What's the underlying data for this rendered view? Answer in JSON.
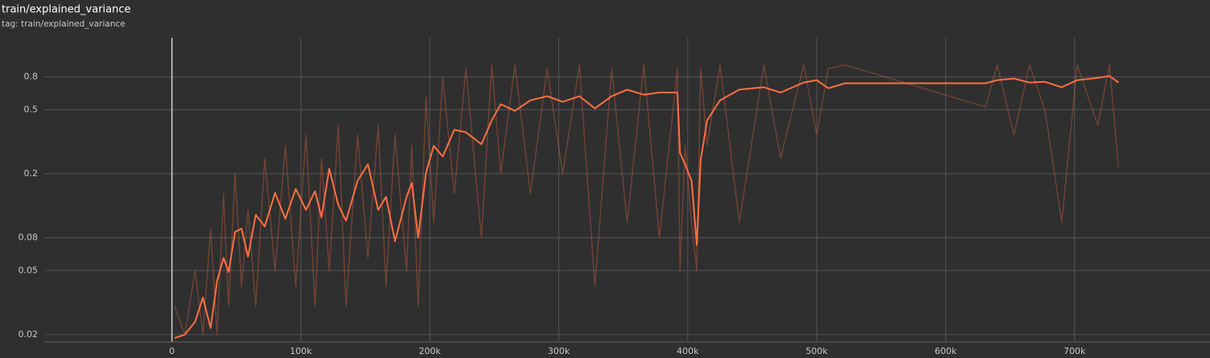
{
  "chart_data": {
    "type": "line",
    "title": "train/explained_variance",
    "subtitle": "tag: train/explained_variance",
    "log_y": true,
    "grid": true,
    "xlim": [
      -99000,
      805000
    ],
    "ylim": [
      0.018,
      1.4
    ],
    "xticks": [
      0,
      {
        "value": 100000,
        "label": "100k"
      },
      {
        "value": 200000,
        "label": "200k"
      },
      {
        "value": 300000,
        "label": "300k"
      },
      {
        "value": 400000,
        "label": "400k"
      },
      {
        "value": 500000,
        "label": "500k"
      },
      {
        "value": 600000,
        "label": "600k"
      },
      {
        "value": 700000,
        "label": "700k"
      }
    ],
    "yticks": [
      0.02,
      0.05,
      0.08,
      0.2,
      0.5,
      0.8
    ],
    "x": [
      2000,
      10000,
      18000,
      24000,
      30000,
      35000,
      40000,
      44000,
      49000,
      54000,
      59000,
      65000,
      72000,
      80000,
      88000,
      96000,
      104000,
      111000,
      116000,
      122000,
      129000,
      135000,
      144000,
      152000,
      160000,
      166000,
      173000,
      182000,
      186000,
      191000,
      197000,
      203000,
      210000,
      219000,
      228000,
      240000,
      248000,
      255000,
      266000,
      278000,
      291000,
      303000,
      316000,
      328000,
      341000,
      353000,
      366000,
      378000,
      392000,
      394000,
      398000,
      403000,
      407000,
      410000,
      415000,
      425000,
      440000,
      459000,
      472000,
      490000,
      500000,
      509000,
      522000,
      631000,
      640000,
      653000,
      665000,
      677000,
      690000,
      702000,
      718000,
      727000,
      734000
    ],
    "series": [
      {
        "color": "#ff7043",
        "opacity": 0.3,
        "width": 1.5,
        "values": [
          0.03,
          0.02,
          0.05,
          0.02,
          0.09,
          0.02,
          0.15,
          0.03,
          0.2,
          0.04,
          0.12,
          0.03,
          0.25,
          0.05,
          0.3,
          0.04,
          0.35,
          0.03,
          0.25,
          0.05,
          0.4,
          0.03,
          0.35,
          0.06,
          0.4,
          0.04,
          0.35,
          0.05,
          0.3,
          0.03,
          0.6,
          0.1,
          0.8,
          0.15,
          0.9,
          0.08,
          0.95,
          0.2,
          0.95,
          0.15,
          0.9,
          0.2,
          0.95,
          0.04,
          0.9,
          0.1,
          0.95,
          0.08,
          0.9,
          0.05,
          0.3,
          0.1,
          0.05,
          0.9,
          0.3,
          0.95,
          0.1,
          0.95,
          0.25,
          0.95,
          0.35,
          0.9,
          0.95,
          0.52,
          0.95,
          0.35,
          0.95,
          0.5,
          0.1,
          0.95,
          0.4,
          0.95,
          0.22
        ]
      },
      {
        "color": "#ff7043",
        "opacity": 1,
        "width": 2,
        "values": [
          0.019,
          0.02,
          0.024,
          0.034,
          0.022,
          0.043,
          0.06,
          0.049,
          0.087,
          0.091,
          0.061,
          0.111,
          0.094,
          0.152,
          0.105,
          0.161,
          0.119,
          0.156,
          0.107,
          0.215,
          0.128,
          0.102,
          0.181,
          0.229,
          0.119,
          0.144,
          0.076,
          0.144,
          0.175,
          0.08,
          0.203,
          0.298,
          0.256,
          0.375,
          0.362,
          0.305,
          0.429,
          0.541,
          0.492,
          0.572,
          0.607,
          0.56,
          0.607,
          0.51,
          0.607,
          0.667,
          0.62,
          0.64,
          0.64,
          0.27,
          0.228,
          0.181,
          0.072,
          0.243,
          0.429,
          0.572,
          0.667,
          0.69,
          0.64,
          0.738,
          0.764,
          0.68,
          0.73,
          0.73,
          0.764,
          0.782,
          0.738,
          0.746,
          0.69,
          0.764,
          0.79,
          0.81,
          0.738
        ]
      }
    ]
  }
}
